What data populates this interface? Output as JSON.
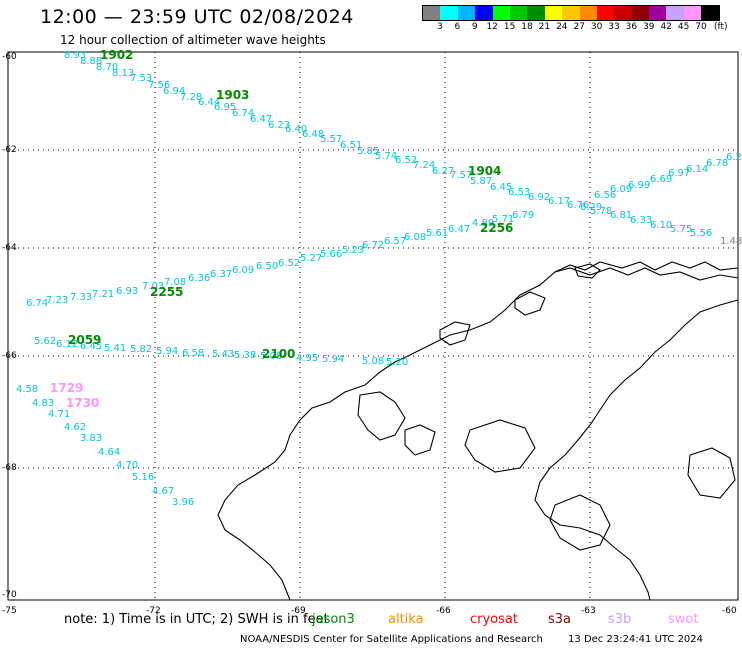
{
  "header": {
    "title": "12:00 — 23:59 UTC 02/08/2024",
    "subtitle": "12 hour collection of altimeter wave heights"
  },
  "colorbar": {
    "colors": [
      "#808080",
      "#00ffff",
      "#00b4ff",
      "#0000ff",
      "#00ff00",
      "#00c800",
      "#008c00",
      "#ffff00",
      "#ffc800",
      "#ff8c00",
      "#ff0000",
      "#c80000",
      "#8c0000",
      "#a000a0",
      "#c8a0ff",
      "#ff96ff",
      "#000000"
    ],
    "labels": [
      "3",
      "6",
      "9",
      "12",
      "15",
      "18",
      "21",
      "24",
      "27",
      "30",
      "33",
      "36",
      "39",
      "42",
      "45",
      "70"
    ],
    "unit": "(ft)"
  },
  "axes": {
    "lat_labels": [
      "-60",
      "-62",
      "-64",
      "-66",
      "-68",
      "-70"
    ],
    "lon_labels": [
      "-75",
      "-72",
      "-69",
      "-66",
      "-63",
      "-60"
    ]
  },
  "tracks": [
    {
      "label": "1902",
      "color": "#008c00"
    },
    {
      "label": "1903",
      "color": "#008c00"
    },
    {
      "label": "1904",
      "color": "#008c00"
    },
    {
      "label": "2256",
      "color": "#008c00"
    },
    {
      "label": "2255",
      "color": "#008c00"
    },
    {
      "label": "2059",
      "color": "#008c00"
    },
    {
      "label": "2100",
      "color": "#008c00"
    },
    {
      "label": "1729",
      "color": "#ff96ff"
    },
    {
      "label": "1730",
      "color": "#ff96ff"
    }
  ],
  "waves": [
    "8.93",
    "8.88",
    "8.70",
    "8.13",
    "7.53",
    "7.56",
    "6.94",
    "7.28",
    "6.44",
    "6.95",
    "6.74",
    "6.47",
    "6.23",
    "6.40",
    "6.48",
    "5.57",
    "6.51",
    "5.85",
    "5.74",
    "6.52",
    "7.24",
    "6.27",
    "7.57",
    "5.87",
    "6.45",
    "6.53",
    "6.92",
    "6.17",
    "6.76",
    "6.29",
    "6.56",
    "6.09",
    "6.99",
    "6.69",
    "6.97",
    "6.14",
    "6.78",
    "6.2",
    "6.74",
    "7.23",
    "7.33",
    "7.21",
    "6.93",
    "7.03",
    "7.08",
    "6.36",
    "6.37",
    "6.09",
    "6.50",
    "6.52",
    "5.27",
    "5.66",
    "5.23",
    "6.72",
    "6.57",
    "6.08",
    "5.61",
    "6.47",
    "4.89",
    "5.71",
    "6.79",
    "5.78",
    "6.81",
    "6.33",
    "6.10",
    "5.75",
    "5.56",
    "1.48",
    "5.62",
    "6.12",
    "6.45",
    "5.41",
    "5.82",
    "5.94",
    "6.58",
    "5.43",
    "5.38",
    "5.08",
    "4.95",
    "5.94",
    "5.08",
    "5.20",
    "4.58",
    "4.83",
    "4.71",
    "4.62",
    "3.83",
    "4.64",
    "4.70",
    "5.16",
    "4.67",
    "3.96"
  ],
  "note": {
    "text": "note: 1) Time is in UTC; 2) SWH is in feet",
    "satellites": [
      {
        "name": "jason3",
        "color": "#008c00"
      },
      {
        "name": "altika",
        "color": "#ff8c00"
      },
      {
        "name": "cryosat",
        "color": "#ff0000"
      },
      {
        "name": "s3a",
        "color": "#8c0000"
      },
      {
        "name": "s3b",
        "color": "#c8a0ff"
      },
      {
        "name": "swot",
        "color": "#ff96ff"
      }
    ]
  },
  "footer": {
    "credit": "NOAA/NESDIS Center for Satellite Applications and Research",
    "timestamp": "13 Dec 23:24:41 UTC 2024"
  }
}
